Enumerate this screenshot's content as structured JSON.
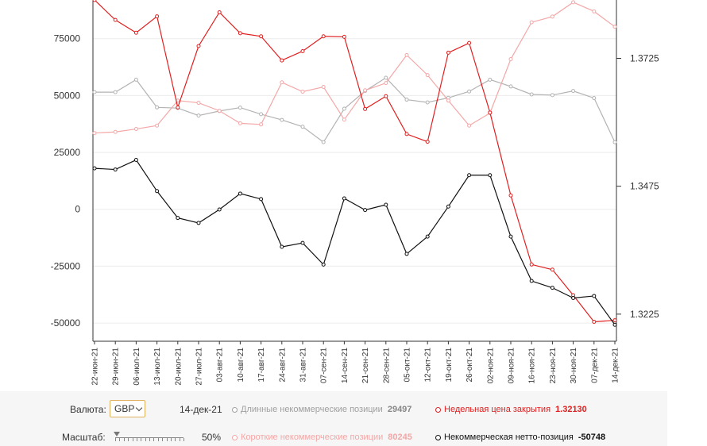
{
  "chart_data": {
    "type": "line",
    "categories": [
      "22-июн-21",
      "29-июн-21",
      "06-июл-21",
      "13-июл-21",
      "20-июл-21",
      "27-июл-21",
      "03-авг-21",
      "10-авг-21",
      "17-авг-21",
      "24-авг-21",
      "31-авг-21",
      "07-сен-21",
      "14-сен-21",
      "21-сен-21",
      "28-сен-21",
      "05-окт-21",
      "12-окт-21",
      "19-окт-21",
      "26-окт-21",
      "02-ноя-21",
      "09-ноя-21",
      "16-ноя-21",
      "23-ноя-21",
      "30-ноя-21",
      "07-дек-21",
      "14-дек-21"
    ],
    "left_axis": {
      "ylim": [
        -58000,
        92000
      ],
      "ticks": [
        75000,
        50000,
        25000,
        0,
        -25000,
        -50000
      ]
    },
    "right_axis": {
      "ylim": [
        1.3172,
        1.3839
      ],
      "ticks": [
        1.3725,
        1.3475,
        1.3225
      ]
    },
    "series": [
      {
        "name": "Длинные некоммерческие позиции",
        "axis": "left",
        "color": "#b3b3b3",
        "values": [
          51500,
          51500,
          57000,
          44800,
          44500,
          41200,
          43200,
          44700,
          41800,
          39300,
          36300,
          29500,
          44200,
          52000,
          57800,
          48200,
          47000,
          49000,
          51800,
          57000,
          54000,
          50500,
          50200,
          52000,
          48900,
          29497
        ]
      },
      {
        "name": "Короткие некоммерческие позиции",
        "axis": "left",
        "color": "#f4a7a7",
        "values": [
          33500,
          34000,
          35300,
          36800,
          47800,
          46800,
          43300,
          37800,
          37300,
          55800,
          51700,
          53800,
          39400,
          52300,
          55500,
          67800,
          59000,
          47800,
          36800,
          42300,
          66000,
          82200,
          84700,
          91000,
          87000,
          80245
        ]
      },
      {
        "name": "Недельная цена закрытия",
        "axis": "right",
        "color": "#e02020",
        "values": [
          1.3839,
          1.38,
          1.3775,
          1.3807,
          1.3629,
          1.3749,
          1.3815,
          1.3774,
          1.3768,
          1.3721,
          1.3739,
          1.3768,
          1.3767,
          1.3626,
          1.3651,
          1.3577,
          1.3562,
          1.3736,
          1.3755,
          1.3619,
          1.3457,
          1.3322,
          1.3312,
          1.3262,
          1.321,
          1.3213
        ]
      },
      {
        "name": "Некоммерческая нетто-позиция",
        "axis": "left",
        "color": "#111111",
        "values": [
          18000,
          17500,
          21700,
          8000,
          -3800,
          -6000,
          -100,
          6900,
          4500,
          -16500,
          -14800,
          -24300,
          4800,
          -300,
          2000,
          -19600,
          -12000,
          1200,
          15000,
          15000,
          -12000,
          -31500,
          -34500,
          -39000,
          -38100,
          -50748
        ]
      }
    ]
  },
  "controls": {
    "currency_label": "Валюта:",
    "currency_value": "GBP",
    "date_label": "14-дек-21",
    "scale_label": "Масштаб:",
    "scale_value": "50%"
  },
  "legend": {
    "long": {
      "label": "Длинные некоммерческие позиции",
      "value": "29497",
      "color": "#a0a0a0"
    },
    "short": {
      "label": "Короткие некоммерческие позиции",
      "value": "80245",
      "color": "#f4a7a7"
    },
    "close": {
      "label": "Недельная цена закрытия",
      "value": "1.32130",
      "color": "#e02020"
    },
    "net": {
      "label": "Некоммерческая нетто-позиция",
      "value": "-50748",
      "color": "#111111"
    }
  }
}
